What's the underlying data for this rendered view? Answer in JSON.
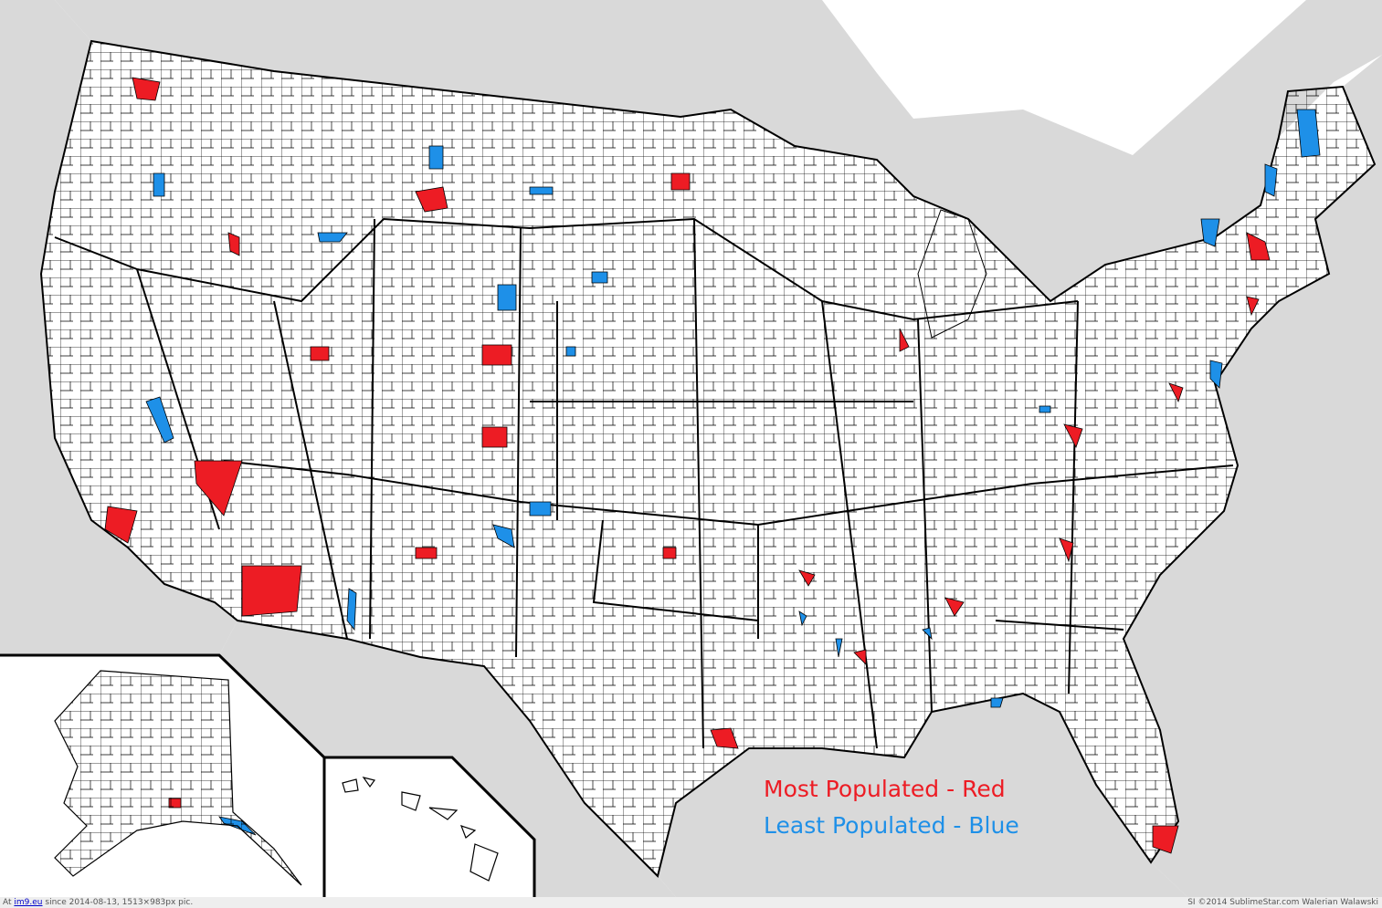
{
  "legend": {
    "red": "Most Populated - Red",
    "blue": "Least Populated - Blue"
  },
  "footer": {
    "left_prefix": "At",
    "left_link": "im9.eu",
    "left_suffix": "since 2014-08-13, 1513×983px pic.",
    "right": "SI ©2014 SublimeStar.com Walerian Walawski"
  }
}
